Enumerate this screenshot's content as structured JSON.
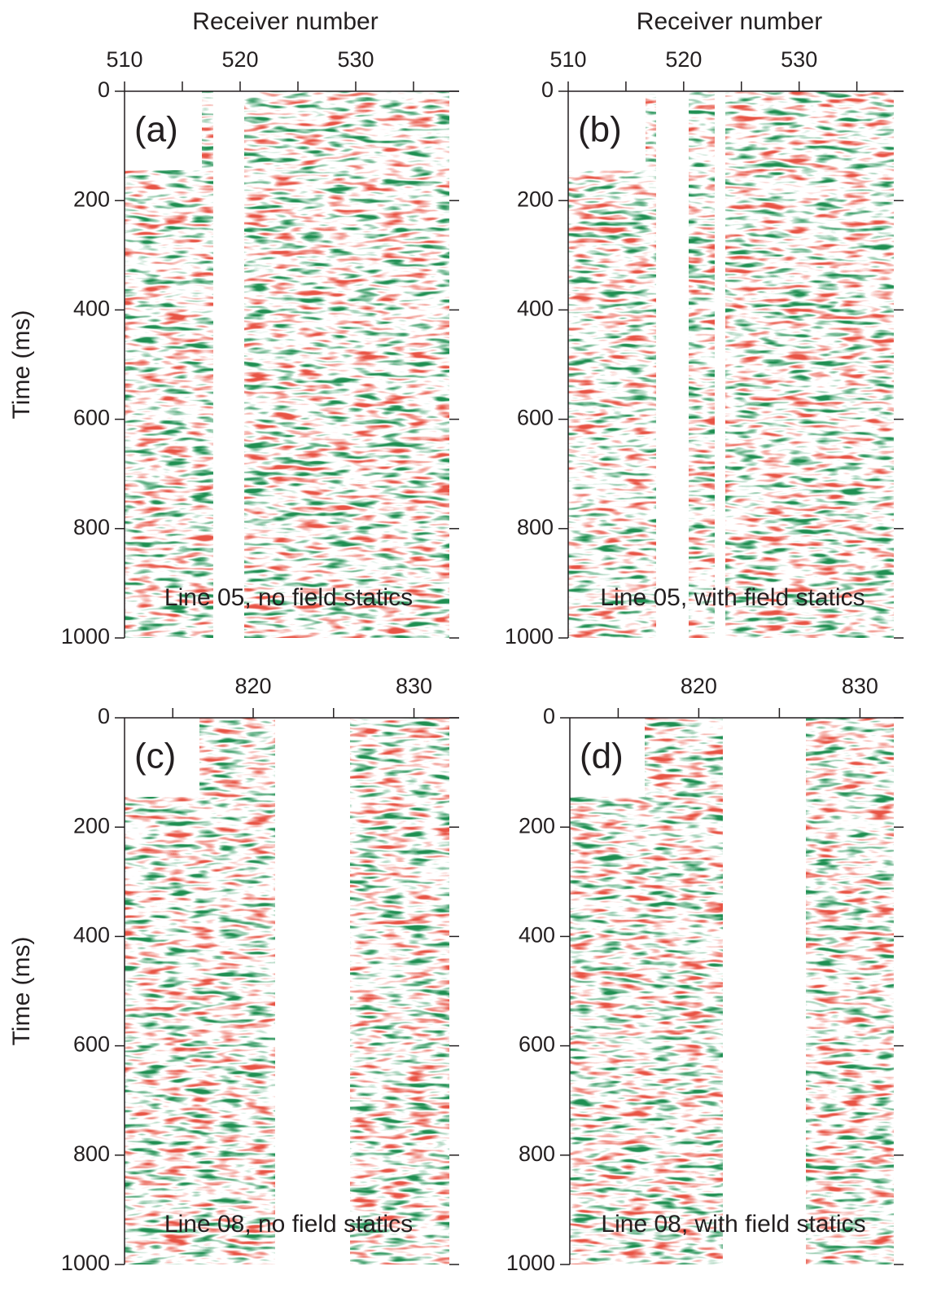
{
  "chart_data": [
    {
      "type": "heatmap",
      "panel_label": "(a)",
      "annotation": "Line 05, no field statics",
      "xlabel": "Receiver number",
      "ylabel": "Time (ms)",
      "xlim": [
        510,
        538.1
      ],
      "xticks": [
        510,
        520,
        530
      ],
      "minor_xticks": [
        515,
        525,
        535
      ],
      "ylim": [
        0,
        1000
      ],
      "yticks": [
        0,
        200,
        400,
        600,
        800,
        1000
      ],
      "y_inverted": true
    },
    {
      "type": "heatmap",
      "panel_label": "(b)",
      "annotation": "Line 05, with field statics",
      "xlabel": "Receiver number",
      "xlim": [
        510,
        538.2
      ],
      "xticks": [
        510,
        520,
        530
      ],
      "minor_xticks": [
        515,
        525,
        535
      ],
      "ylim": [
        0,
        1000
      ],
      "yticks": [
        0,
        200,
        400,
        600,
        800,
        1000
      ],
      "y_inverted": true
    },
    {
      "type": "heatmap",
      "panel_label": "(c)",
      "annotation": "Line 08, no field statics",
      "ylabel": "Time (ms)",
      "xlim": [
        812,
        832.2
      ],
      "xticks": [
        820,
        830
      ],
      "minor_xticks": [
        815,
        825
      ],
      "ylim": [
        0,
        1000
      ],
      "yticks": [
        0,
        200,
        400,
        600,
        800,
        1000
      ],
      "y_inverted": true
    },
    {
      "type": "heatmap",
      "panel_label": "(d)",
      "annotation": "Line 08, with field statics",
      "xlim": [
        812,
        832.1
      ],
      "xticks": [
        820,
        830
      ],
      "minor_xticks": [
        815,
        825
      ],
      "ylim": [
        0,
        1000
      ],
      "yticks": [
        0,
        200,
        400,
        600,
        800,
        1000
      ],
      "y_inverted": true
    }
  ]
}
